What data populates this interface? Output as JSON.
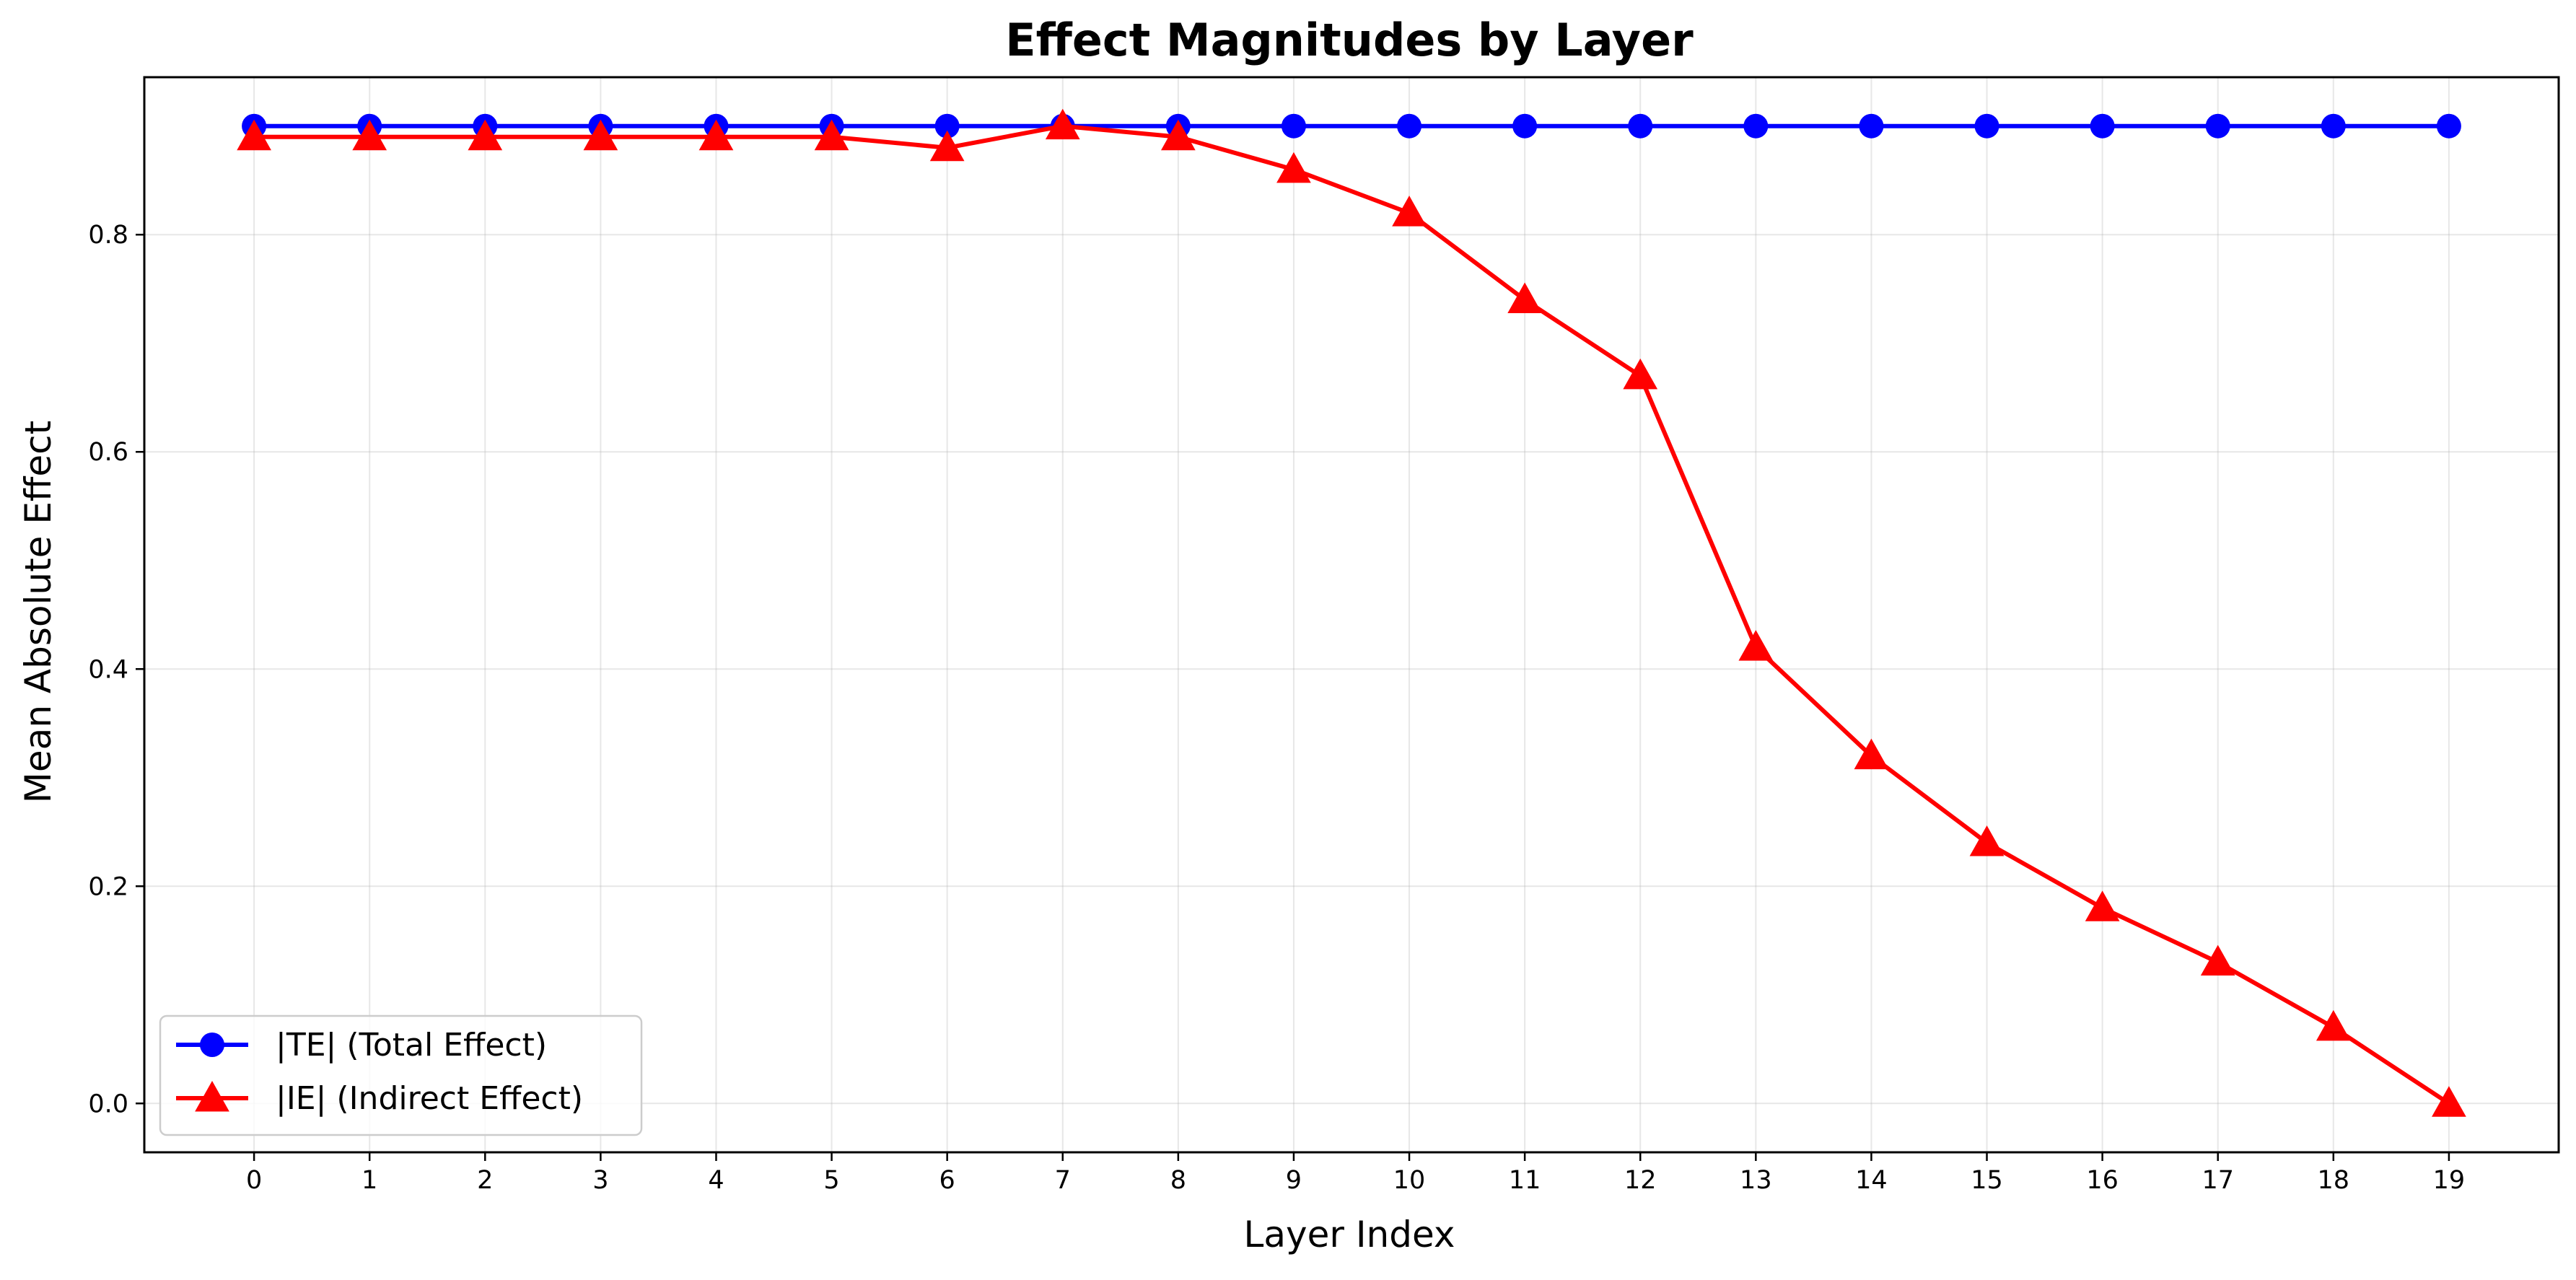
{
  "chart_data": {
    "type": "line",
    "title": "Effect Magnitudes by Layer",
    "xlabel": "Layer Index",
    "ylabel": "Mean Absolute Effect",
    "x": [
      0,
      1,
      2,
      3,
      4,
      5,
      6,
      7,
      8,
      9,
      10,
      11,
      12,
      13,
      14,
      15,
      16,
      17,
      18,
      19
    ],
    "xlim": [
      -0.95,
      19.95
    ],
    "ylim": [
      -0.045,
      0.945
    ],
    "yticks": [
      0.0,
      0.2,
      0.4,
      0.6,
      0.8
    ],
    "ytick_labels": [
      "0.0",
      "0.2",
      "0.4",
      "0.6",
      "0.8"
    ],
    "xtick_labels": [
      "0",
      "1",
      "2",
      "3",
      "4",
      "5",
      "6",
      "7",
      "8",
      "9",
      "10",
      "11",
      "12",
      "13",
      "14",
      "15",
      "16",
      "17",
      "18",
      "19"
    ],
    "grid": true,
    "legend_position": "lower-left",
    "series": [
      {
        "name": "|TE| (Total Effect)",
        "color": "#0000ff",
        "marker": "circle",
        "values": [
          0.9,
          0.9,
          0.9,
          0.9,
          0.9,
          0.9,
          0.9,
          0.9,
          0.9,
          0.9,
          0.9,
          0.9,
          0.9,
          0.9,
          0.9,
          0.9,
          0.9,
          0.9,
          0.9,
          0.9
        ]
      },
      {
        "name": "|IE| (Indirect Effect)",
        "color": "#ff0000",
        "marker": "triangle",
        "values": [
          0.89,
          0.89,
          0.89,
          0.89,
          0.89,
          0.89,
          0.88,
          0.9,
          0.89,
          0.86,
          0.82,
          0.74,
          0.67,
          0.42,
          0.32,
          0.24,
          0.18,
          0.13,
          0.07,
          0.0
        ]
      }
    ]
  }
}
